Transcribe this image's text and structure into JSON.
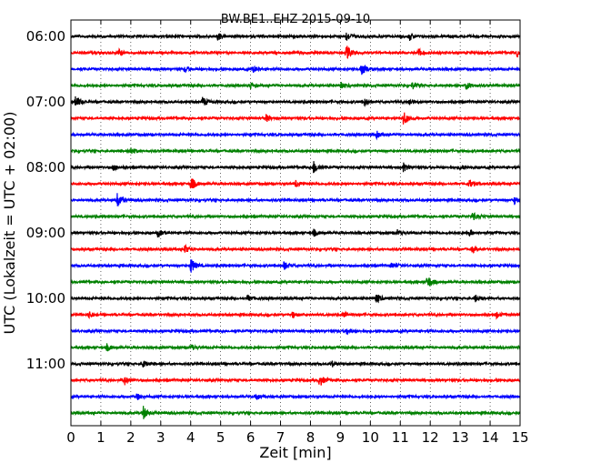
{
  "chart_data": {
    "type": "line",
    "title": "BW.BE1..EHZ 2015-09-10",
    "xlabel": "Zeit  [min]",
    "ylabel": "UTC (Lokalzeit = UTC + 02:00)",
    "xlim": [
      0,
      15
    ],
    "x_ticks": [
      "0",
      "1",
      "2",
      "3",
      "4",
      "5",
      "6",
      "7",
      "8",
      "9",
      "10",
      "11",
      "12",
      "13",
      "14",
      "15"
    ],
    "y_tick_labels": [
      "06:00",
      "07:00",
      "08:00",
      "09:00",
      "10:00",
      "11:00"
    ],
    "trace_interval_min": 15,
    "grid": "vertical dotted",
    "colors": [
      "#000000",
      "#ff0000",
      "#0000ff",
      "#008000"
    ],
    "traces": [
      {
        "start": "06:00",
        "color": "#000000",
        "events": [
          [
            4.9,
            0.5
          ],
          [
            9.2,
            0.6
          ],
          [
            11.3,
            0.5
          ]
        ]
      },
      {
        "start": "06:15",
        "color": "#ff0000",
        "events": [
          [
            1.6,
            0.4
          ],
          [
            9.2,
            0.9
          ],
          [
            11.6,
            0.5
          ],
          [
            14.9,
            0.5
          ]
        ]
      },
      {
        "start": "06:30",
        "color": "#0000ff",
        "events": [
          [
            3.8,
            0.4
          ],
          [
            6.1,
            0.4
          ],
          [
            9.7,
            1.0
          ]
        ]
      },
      {
        "start": "06:45",
        "color": "#008000",
        "events": [
          [
            6.0,
            0.4
          ],
          [
            9.0,
            0.4
          ],
          [
            11.4,
            0.4
          ],
          [
            13.2,
            0.5
          ]
        ]
      },
      {
        "start": "07:00",
        "color": "#000000",
        "events": [
          [
            0.15,
            0.8
          ],
          [
            4.4,
            0.6
          ],
          [
            9.8,
            0.4
          ],
          [
            11.3,
            0.4
          ]
        ]
      },
      {
        "start": "07:15",
        "color": "#ff0000",
        "events": [
          [
            6.5,
            0.5
          ],
          [
            11.1,
            0.9
          ]
        ]
      },
      {
        "start": "07:30",
        "color": "#0000ff",
        "events": [
          [
            10.2,
            0.4
          ]
        ]
      },
      {
        "start": "07:45",
        "color": "#008000",
        "events": [
          [
            2.0,
            0.4
          ]
        ]
      },
      {
        "start": "08:00",
        "color": "#000000",
        "events": [
          [
            1.4,
            0.4
          ],
          [
            8.1,
            0.8
          ],
          [
            11.1,
            0.5
          ],
          [
            13.0,
            0.4
          ]
        ]
      },
      {
        "start": "08:15",
        "color": "#ff0000",
        "events": [
          [
            4.0,
            0.9
          ],
          [
            7.5,
            0.5
          ],
          [
            13.3,
            0.5
          ]
        ]
      },
      {
        "start": "08:30",
        "color": "#0000ff",
        "events": [
          [
            1.55,
            0.9
          ],
          [
            14.8,
            0.5
          ]
        ]
      },
      {
        "start": "08:45",
        "color": "#008000",
        "events": [
          [
            13.4,
            0.5
          ]
        ]
      },
      {
        "start": "09:00",
        "color": "#000000",
        "events": [
          [
            2.9,
            0.5
          ],
          [
            8.1,
            0.4
          ],
          [
            10.9,
            0.4
          ],
          [
            13.3,
            0.4
          ]
        ]
      },
      {
        "start": "09:15",
        "color": "#ff0000",
        "events": [
          [
            3.8,
            0.5
          ],
          [
            13.4,
            0.4
          ]
        ]
      },
      {
        "start": "09:30",
        "color": "#0000ff",
        "events": [
          [
            4.0,
            1.0
          ],
          [
            7.1,
            0.6
          ],
          [
            10.7,
            0.4
          ]
        ]
      },
      {
        "start": "09:45",
        "color": "#008000",
        "events": [
          [
            11.9,
            0.9
          ]
        ]
      },
      {
        "start": "10:00",
        "color": "#000000",
        "events": [
          [
            5.9,
            0.4
          ],
          [
            10.2,
            0.6
          ],
          [
            13.5,
            0.4
          ]
        ]
      },
      {
        "start": "10:15",
        "color": "#ff0000",
        "events": [
          [
            0.6,
            0.4
          ],
          [
            7.4,
            0.4
          ],
          [
            9.1,
            0.4
          ],
          [
            14.2,
            0.4
          ]
        ]
      },
      {
        "start": "10:30",
        "color": "#0000ff",
        "events": [
          [
            9.2,
            0.4
          ]
        ]
      },
      {
        "start": "10:45",
        "color": "#008000",
        "events": [
          [
            1.2,
            0.4
          ],
          [
            4.0,
            0.4
          ]
        ]
      },
      {
        "start": "11:00",
        "color": "#000000",
        "events": [
          [
            2.4,
            0.4
          ],
          [
            8.7,
            0.4
          ]
        ]
      },
      {
        "start": "11:15",
        "color": "#ff0000",
        "events": [
          [
            1.8,
            0.5
          ],
          [
            8.3,
            0.8
          ]
        ]
      },
      {
        "start": "11:30",
        "color": "#0000ff",
        "events": [
          [
            2.2,
            0.4
          ],
          [
            6.2,
            0.4
          ]
        ]
      },
      {
        "start": "11:45",
        "color": "#008000",
        "events": [
          [
            2.4,
            0.9
          ]
        ]
      }
    ]
  }
}
